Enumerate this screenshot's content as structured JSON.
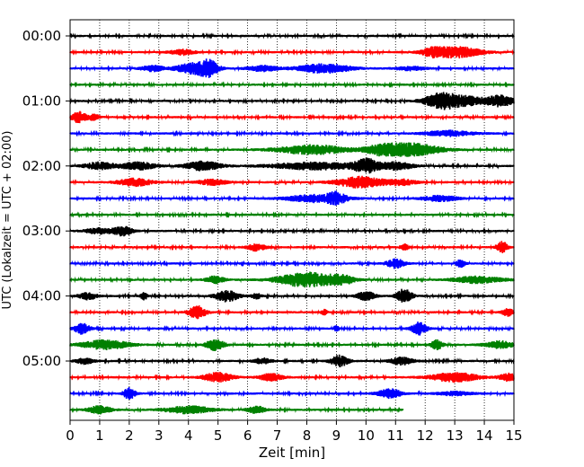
{
  "chart_data": {
    "type": "line",
    "title": "",
    "xlabel": "Zeit  [min]",
    "ylabel": "UTC (Lokalzeit = UTC + 02:00)",
    "xlim": [
      0,
      15
    ],
    "x_ticks": [
      "0",
      "1",
      "2",
      "3",
      "4",
      "5",
      "6",
      "7",
      "8",
      "9",
      "10",
      "11",
      "12",
      "13",
      "14",
      "15"
    ],
    "y_ticks": [
      "00:00",
      "01:00",
      "02:00",
      "03:00",
      "04:00",
      "05:00"
    ],
    "x_grid": "dotted vertical at each minute",
    "legend": "none",
    "colors": [
      "#000000",
      "#ff0000",
      "#0000ff",
      "#008000"
    ],
    "traces": [
      {
        "start": "00:00",
        "color": "#000000",
        "end_min": 15,
        "bursts": []
      },
      {
        "start": "00:15",
        "color": "#ff0000",
        "end_min": 15,
        "bursts": [
          [
            3.8,
            0.4,
            3
          ],
          [
            13.0,
            0.9,
            6
          ],
          [
            12.2,
            0.3,
            3
          ]
        ]
      },
      {
        "start": "00:30",
        "color": "#0000ff",
        "end_min": 15,
        "bursts": [
          [
            4.2,
            0.6,
            6
          ],
          [
            4.7,
            0.3,
            7
          ],
          [
            8.6,
            0.9,
            5
          ],
          [
            2.8,
            0.4,
            3
          ],
          [
            6.5,
            0.5,
            3
          ],
          [
            11.5,
            0.5,
            2
          ]
        ]
      },
      {
        "start": "00:45",
        "color": "#008000",
        "end_min": 15,
        "bursts": []
      },
      {
        "start": "01:00",
        "color": "#000000",
        "end_min": 15,
        "bursts": [
          [
            12.6,
            0.6,
            9
          ],
          [
            14.5,
            0.5,
            6
          ],
          [
            13.5,
            0.5,
            4
          ]
        ]
      },
      {
        "start": "01:15",
        "color": "#ff0000",
        "end_min": 15,
        "bursts": [
          [
            0.3,
            0.25,
            6
          ],
          [
            0.8,
            0.2,
            3
          ]
        ]
      },
      {
        "start": "01:30",
        "color": "#0000ff",
        "end_min": 15,
        "bursts": [
          [
            12.8,
            0.8,
            3
          ]
        ]
      },
      {
        "start": "01:45",
        "color": "#008000",
        "end_min": 15,
        "bursts": [
          [
            8.2,
            1.2,
            5
          ],
          [
            11.5,
            1.0,
            7
          ],
          [
            10.5,
            0.5,
            4
          ]
        ]
      },
      {
        "start": "02:00",
        "color": "#000000",
        "end_min": 15,
        "bursts": [
          [
            1.0,
            0.5,
            4
          ],
          [
            2.3,
            0.6,
            4
          ],
          [
            4.5,
            0.6,
            5
          ],
          [
            8.3,
            1.5,
            4
          ],
          [
            10.0,
            0.4,
            7
          ],
          [
            11.0,
            0.6,
            4
          ]
        ]
      },
      {
        "start": "02:15",
        "color": "#ff0000",
        "end_min": 15,
        "bursts": [
          [
            2.2,
            0.6,
            4
          ],
          [
            4.8,
            0.5,
            3
          ],
          [
            9.8,
            0.8,
            6
          ],
          [
            11.2,
            0.5,
            3
          ]
        ]
      },
      {
        "start": "02:30",
        "color": "#0000ff",
        "end_min": 15,
        "bursts": [
          [
            8.3,
            1.0,
            4
          ],
          [
            9.0,
            0.3,
            5
          ],
          [
            12.5,
            0.6,
            3
          ]
        ]
      },
      {
        "start": "02:45",
        "color": "#008000",
        "end_min": 15,
        "bursts": []
      },
      {
        "start": "03:00",
        "color": "#000000",
        "end_min": 15,
        "bursts": [
          [
            1.0,
            0.5,
            3
          ],
          [
            1.8,
            0.3,
            5
          ]
        ]
      },
      {
        "start": "03:15",
        "color": "#ff0000",
        "end_min": 15,
        "bursts": [
          [
            6.3,
            0.3,
            4
          ],
          [
            11.3,
            0.15,
            3
          ],
          [
            14.6,
            0.2,
            6
          ]
        ]
      },
      {
        "start": "03:30",
        "color": "#0000ff",
        "end_min": 15,
        "bursts": [
          [
            11.0,
            0.3,
            5
          ],
          [
            13.2,
            0.15,
            4
          ]
        ]
      },
      {
        "start": "03:45",
        "color": "#008000",
        "end_min": 15,
        "bursts": [
          [
            4.9,
            0.3,
            4
          ],
          [
            8.0,
            1.0,
            8
          ],
          [
            9.2,
            0.4,
            4
          ],
          [
            13.8,
            0.8,
            4
          ]
        ]
      },
      {
        "start": "04:00",
        "color": "#000000",
        "end_min": 15,
        "bursts": [
          [
            0.6,
            0.3,
            4
          ],
          [
            2.5,
            0.1,
            5
          ],
          [
            5.3,
            0.4,
            6
          ],
          [
            10.0,
            0.3,
            5
          ],
          [
            11.3,
            0.25,
            8
          ],
          [
            6.3,
            0.15,
            3
          ]
        ]
      },
      {
        "start": "04:15",
        "color": "#ff0000",
        "end_min": 15,
        "bursts": [
          [
            4.3,
            0.3,
            7
          ],
          [
            14.8,
            0.2,
            4
          ],
          [
            8.6,
            0.1,
            3
          ]
        ]
      },
      {
        "start": "04:30",
        "color": "#0000ff",
        "end_min": 15,
        "bursts": [
          [
            0.4,
            0.25,
            6
          ],
          [
            11.8,
            0.25,
            7
          ],
          [
            9.0,
            0.1,
            3
          ]
        ]
      },
      {
        "start": "04:45",
        "color": "#008000",
        "end_min": 15,
        "bursts": [
          [
            1.2,
            0.8,
            5
          ],
          [
            4.9,
            0.3,
            6
          ],
          [
            12.4,
            0.2,
            5
          ],
          [
            14.5,
            0.5,
            4
          ]
        ]
      },
      {
        "start": "05:00",
        "color": "#000000",
        "end_min": 15,
        "bursts": [
          [
            0.5,
            0.3,
            3
          ],
          [
            9.1,
            0.3,
            6
          ],
          [
            11.2,
            0.4,
            4
          ],
          [
            6.5,
            0.3,
            3
          ]
        ]
      },
      {
        "start": "05:15",
        "color": "#ff0000",
        "end_min": 15,
        "bursts": [
          [
            5.0,
            0.5,
            5
          ],
          [
            6.8,
            0.4,
            4
          ],
          [
            13.0,
            0.8,
            5
          ],
          [
            14.8,
            0.3,
            4
          ]
        ]
      },
      {
        "start": "05:30",
        "color": "#0000ff",
        "end_min": 15,
        "bursts": [
          [
            2.0,
            0.2,
            6
          ],
          [
            10.8,
            0.4,
            5
          ],
          [
            13.0,
            0.6,
            2
          ]
        ]
      },
      {
        "start": "05:45",
        "color": "#008000",
        "end_min": 11.25,
        "bursts": [
          [
            1.0,
            0.4,
            4
          ],
          [
            4.0,
            0.8,
            4
          ],
          [
            6.3,
            0.3,
            4
          ]
        ]
      }
    ]
  }
}
